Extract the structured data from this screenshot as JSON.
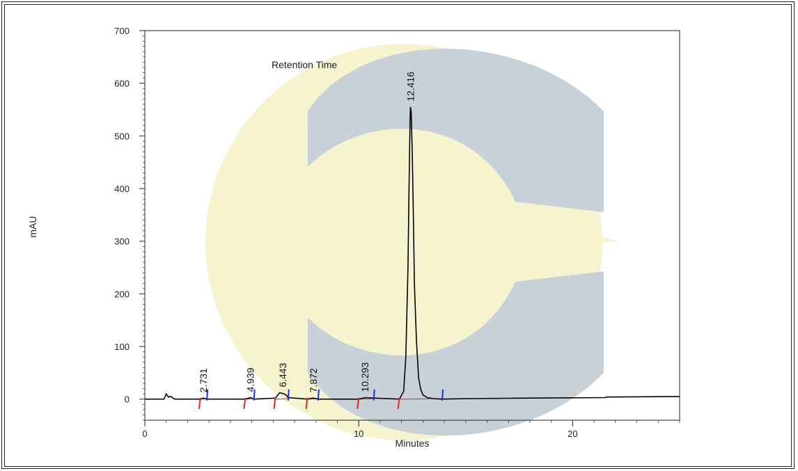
{
  "colors": {
    "trace": "#000000",
    "start_marker": "#e8231f",
    "end_marker": "#1a2ee8",
    "baseline": "#e8231f",
    "watermark_gray": "#c9d1d8",
    "watermark_yellow": "#f6f3cf"
  },
  "chart_data": {
    "type": "line",
    "title": "",
    "xlabel": "Minutes",
    "ylabel": "mAU",
    "annotation": "Retention Time",
    "xlim": [
      0,
      25
    ],
    "ylim": [
      -40,
      700
    ],
    "x_ticks": [
      0,
      10,
      20
    ],
    "y_ticks": [
      0,
      100,
      200,
      300,
      400,
      500,
      600,
      700
    ],
    "grid": false,
    "peaks": [
      {
        "label": "2.731",
        "rt": 2.731,
        "height": 2,
        "start": 2.6,
        "end": 2.9
      },
      {
        "label": "4.939",
        "rt": 4.939,
        "height": 3,
        "start": 4.7,
        "end": 5.1
      },
      {
        "label": "6.443",
        "rt": 6.443,
        "height": 12,
        "start": 6.1,
        "end": 6.7
      },
      {
        "label": "7.872",
        "rt": 7.872,
        "height": 2,
        "start": 7.6,
        "end": 8.1
      },
      {
        "label": "10.293",
        "rt": 10.293,
        "height": 3,
        "start": 10.0,
        "end": 10.7
      },
      {
        "label": "12.416",
        "rt": 12.416,
        "height": 555,
        "start": 11.9,
        "end": 13.9
      }
    ],
    "series": [
      {
        "x": [
          0,
          0.9,
          1.0,
          1.1,
          1.2,
          1.4,
          2.0,
          2.6,
          2.73,
          2.9,
          4.7,
          4.94,
          5.1,
          6.1,
          6.3,
          6.44,
          6.6,
          6.7,
          7.6,
          7.87,
          8.1,
          10.0,
          10.29,
          10.7,
          11.9,
          12.1,
          12.2,
          12.3,
          12.35,
          12.4,
          12.42,
          12.45,
          12.5,
          12.55,
          12.6,
          12.7,
          12.8,
          12.9,
          13.0,
          13.2,
          13.5,
          13.9,
          15,
          18,
          21.5,
          21.6,
          25
        ],
        "y": [
          0,
          0,
          10,
          4,
          5,
          0,
          0,
          0,
          2,
          0,
          0,
          3,
          0,
          2,
          12,
          11,
          8,
          3,
          0,
          2,
          0,
          0,
          3,
          2,
          0,
          15,
          80,
          250,
          400,
          530,
          555,
          545,
          470,
          360,
          220,
          110,
          40,
          18,
          8,
          3,
          1,
          0,
          1,
          2,
          3,
          4,
          5
        ]
      }
    ]
  }
}
